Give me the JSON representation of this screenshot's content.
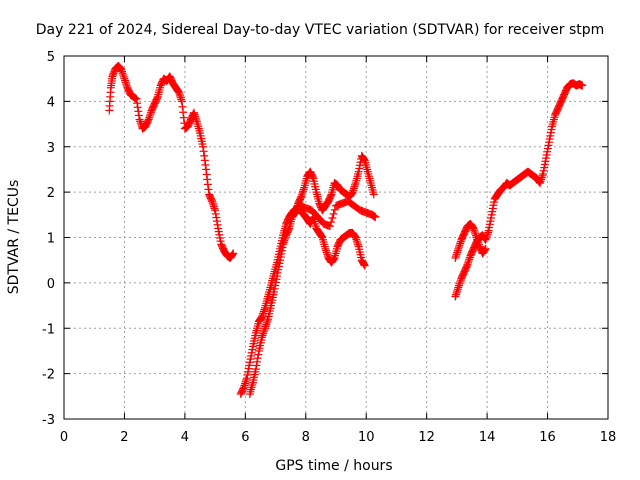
{
  "chart_data": {
    "type": "scatter",
    "title": "Day 221 of 2024, Sidereal Day-to-day VTEC variation (SDTVAR) for receiver stpm",
    "xlabel": "GPS time / hours",
    "ylabel": "SDTVAR / TECUs",
    "xlim": [
      0,
      18
    ],
    "ylim": [
      -3,
      5
    ],
    "xticks": [
      "0",
      "2",
      "4",
      "6",
      "8",
      "10",
      "12",
      "14",
      "16",
      "18"
    ],
    "yticks": [
      "-3",
      "-2",
      "-1",
      "0",
      "1",
      "2",
      "3",
      "4",
      "5"
    ],
    "grid": true,
    "marker": "plus",
    "color": "#ff0000",
    "series": [
      {
        "name": "segment-1",
        "points": [
          [
            1.5,
            3.8
          ],
          [
            1.55,
            4.3
          ],
          [
            1.6,
            4.55
          ],
          [
            1.7,
            4.72
          ],
          [
            1.8,
            4.78
          ],
          [
            1.9,
            4.7
          ],
          [
            2.0,
            4.5
          ],
          [
            2.1,
            4.3
          ],
          [
            2.2,
            4.15
          ],
          [
            2.3,
            4.1
          ],
          [
            2.4,
            4.05
          ],
          [
            2.5,
            3.6
          ],
          [
            2.6,
            3.4
          ],
          [
            2.7,
            3.45
          ],
          [
            2.8,
            3.6
          ],
          [
            2.9,
            3.8
          ],
          [
            3.0,
            3.95
          ],
          [
            3.1,
            4.1
          ],
          [
            3.2,
            4.35
          ],
          [
            3.3,
            4.5
          ],
          [
            3.4,
            4.45
          ],
          [
            3.5,
            4.55
          ],
          [
            3.6,
            4.4
          ],
          [
            3.7,
            4.3
          ],
          [
            3.8,
            4.2
          ],
          [
            3.9,
            4.0
          ],
          [
            4.0,
            3.4
          ],
          [
            4.1,
            3.45
          ],
          [
            4.2,
            3.6
          ],
          [
            4.3,
            3.75
          ],
          [
            4.4,
            3.55
          ],
          [
            4.5,
            3.3
          ],
          [
            4.6,
            3.0
          ],
          [
            4.7,
            2.5
          ],
          [
            4.8,
            1.95
          ],
          [
            4.9,
            1.8
          ],
          [
            5.0,
            1.6
          ],
          [
            5.1,
            1.2
          ],
          [
            5.2,
            0.85
          ],
          [
            5.3,
            0.7
          ],
          [
            5.4,
            0.6
          ],
          [
            5.5,
            0.55
          ],
          [
            5.6,
            0.65
          ]
        ]
      },
      {
        "name": "segment-2",
        "points": [
          [
            5.85,
            -2.45
          ],
          [
            5.95,
            -2.3
          ],
          [
            6.05,
            -2.1
          ],
          [
            6.15,
            -1.75
          ],
          [
            6.25,
            -1.4
          ],
          [
            6.35,
            -1.1
          ],
          [
            6.45,
            -0.85
          ],
          [
            6.55,
            -0.75
          ],
          [
            6.65,
            -0.55
          ],
          [
            6.75,
            -0.3
          ],
          [
            6.85,
            -0.05
          ],
          [
            6.95,
            0.2
          ],
          [
            7.05,
            0.45
          ],
          [
            7.15,
            0.75
          ],
          [
            7.25,
            1.05
          ],
          [
            7.35,
            1.3
          ],
          [
            7.45,
            1.45
          ],
          [
            7.55,
            1.55
          ],
          [
            7.65,
            1.6
          ],
          [
            7.75,
            1.7
          ],
          [
            7.85,
            1.55
          ],
          [
            7.95,
            1.5
          ],
          [
            8.05,
            1.4
          ],
          [
            8.15,
            1.3
          ],
          [
            8.25,
            1.45
          ],
          [
            8.35,
            1.2
          ],
          [
            8.45,
            1.1
          ],
          [
            8.55,
            1.0
          ],
          [
            8.65,
            0.75
          ],
          [
            8.75,
            0.55
          ],
          [
            8.85,
            0.45
          ],
          [
            8.95,
            0.55
          ],
          [
            9.05,
            0.8
          ],
          [
            9.15,
            0.95
          ],
          [
            9.25,
            1.0
          ],
          [
            9.35,
            1.05
          ],
          [
            9.45,
            1.1
          ],
          [
            9.55,
            1.1
          ],
          [
            9.65,
            1.0
          ],
          [
            9.75,
            0.8
          ],
          [
            9.85,
            0.5
          ],
          [
            9.95,
            0.38
          ]
        ]
      },
      {
        "name": "segment-3",
        "points": [
          [
            6.15,
            -2.45
          ],
          [
            6.25,
            -2.2
          ],
          [
            6.35,
            -1.9
          ],
          [
            6.45,
            -1.5
          ],
          [
            6.55,
            -1.2
          ],
          [
            6.65,
            -1.0
          ],
          [
            6.75,
            -0.8
          ],
          [
            6.85,
            -0.5
          ],
          [
            6.95,
            -0.2
          ],
          [
            7.05,
            0.15
          ],
          [
            7.15,
            0.5
          ],
          [
            7.25,
            0.85
          ],
          [
            7.35,
            1.05
          ],
          [
            7.45,
            1.2
          ],
          [
            7.55,
            1.45
          ],
          [
            7.65,
            1.55
          ],
          [
            7.75,
            1.75
          ],
          [
            7.85,
            1.9
          ],
          [
            7.95,
            2.1
          ],
          [
            8.05,
            2.35
          ],
          [
            8.15,
            2.45
          ],
          [
            8.25,
            2.3
          ],
          [
            8.35,
            2.0
          ],
          [
            8.45,
            1.75
          ],
          [
            8.55,
            1.6
          ],
          [
            8.65,
            1.7
          ],
          [
            8.75,
            1.8
          ],
          [
            8.85,
            1.95
          ],
          [
            8.95,
            2.2
          ],
          [
            9.05,
            2.15
          ],
          [
            9.15,
            2.05
          ],
          [
            9.25,
            2.0
          ],
          [
            9.35,
            1.95
          ],
          [
            9.45,
            1.9
          ],
          [
            9.55,
            2.0
          ],
          [
            9.65,
            2.2
          ],
          [
            9.75,
            2.45
          ],
          [
            9.85,
            2.8
          ],
          [
            9.95,
            2.7
          ],
          [
            10.05,
            2.45
          ],
          [
            10.15,
            2.2
          ],
          [
            10.25,
            1.95
          ]
        ]
      },
      {
        "name": "segment-4",
        "points": [
          [
            7.6,
            1.6
          ],
          [
            7.8,
            1.7
          ],
          [
            8.0,
            1.65
          ],
          [
            8.2,
            1.6
          ],
          [
            8.4,
            1.45
          ],
          [
            8.6,
            1.3
          ],
          [
            8.8,
            1.25
          ],
          [
            9.0,
            1.7
          ],
          [
            9.2,
            1.75
          ],
          [
            9.4,
            1.8
          ],
          [
            9.6,
            1.7
          ],
          [
            9.8,
            1.6
          ],
          [
            10.0,
            1.55
          ],
          [
            10.2,
            1.5
          ],
          [
            10.3,
            1.45
          ]
        ]
      },
      {
        "name": "segment-5",
        "points": [
          [
            12.95,
            -0.3
          ],
          [
            13.05,
            -0.1
          ],
          [
            13.15,
            0.1
          ],
          [
            13.25,
            0.25
          ],
          [
            13.35,
            0.4
          ],
          [
            13.45,
            0.6
          ],
          [
            13.55,
            0.75
          ],
          [
            13.65,
            0.9
          ],
          [
            13.75,
            1.0
          ],
          [
            13.85,
            1.05
          ],
          [
            13.95,
            0.95
          ],
          [
            14.05,
            1.15
          ],
          [
            14.15,
            1.5
          ],
          [
            14.25,
            1.85
          ],
          [
            14.35,
            1.95
          ],
          [
            14.45,
            2.05
          ],
          [
            14.55,
            2.1
          ],
          [
            14.65,
            2.2
          ],
          [
            14.75,
            2.15
          ],
          [
            14.85,
            2.2
          ],
          [
            14.95,
            2.25
          ],
          [
            15.05,
            2.3
          ],
          [
            15.15,
            2.35
          ],
          [
            15.25,
            2.4
          ],
          [
            15.35,
            2.45
          ],
          [
            15.45,
            2.4
          ],
          [
            15.55,
            2.35
          ],
          [
            15.65,
            2.3
          ],
          [
            15.75,
            2.2
          ],
          [
            15.85,
            2.4
          ],
          [
            15.95,
            2.75
          ],
          [
            16.05,
            3.1
          ],
          [
            16.15,
            3.45
          ],
          [
            16.25,
            3.7
          ],
          [
            16.35,
            3.85
          ],
          [
            16.45,
            4.0
          ],
          [
            16.55,
            4.15
          ],
          [
            16.65,
            4.3
          ],
          [
            16.75,
            4.38
          ],
          [
            16.85,
            4.4
          ],
          [
            16.95,
            4.35
          ],
          [
            17.05,
            4.38
          ],
          [
            17.15,
            4.35
          ]
        ]
      },
      {
        "name": "segment-6",
        "points": [
          [
            12.95,
            0.55
          ],
          [
            13.05,
            0.75
          ],
          [
            13.15,
            0.95
          ],
          [
            13.25,
            1.1
          ],
          [
            13.35,
            1.25
          ],
          [
            13.45,
            1.3
          ],
          [
            13.55,
            1.2
          ],
          [
            13.65,
            1.0
          ],
          [
            13.75,
            0.8
          ],
          [
            13.85,
            0.65
          ],
          [
            13.95,
            0.75
          ]
        ]
      }
    ]
  }
}
